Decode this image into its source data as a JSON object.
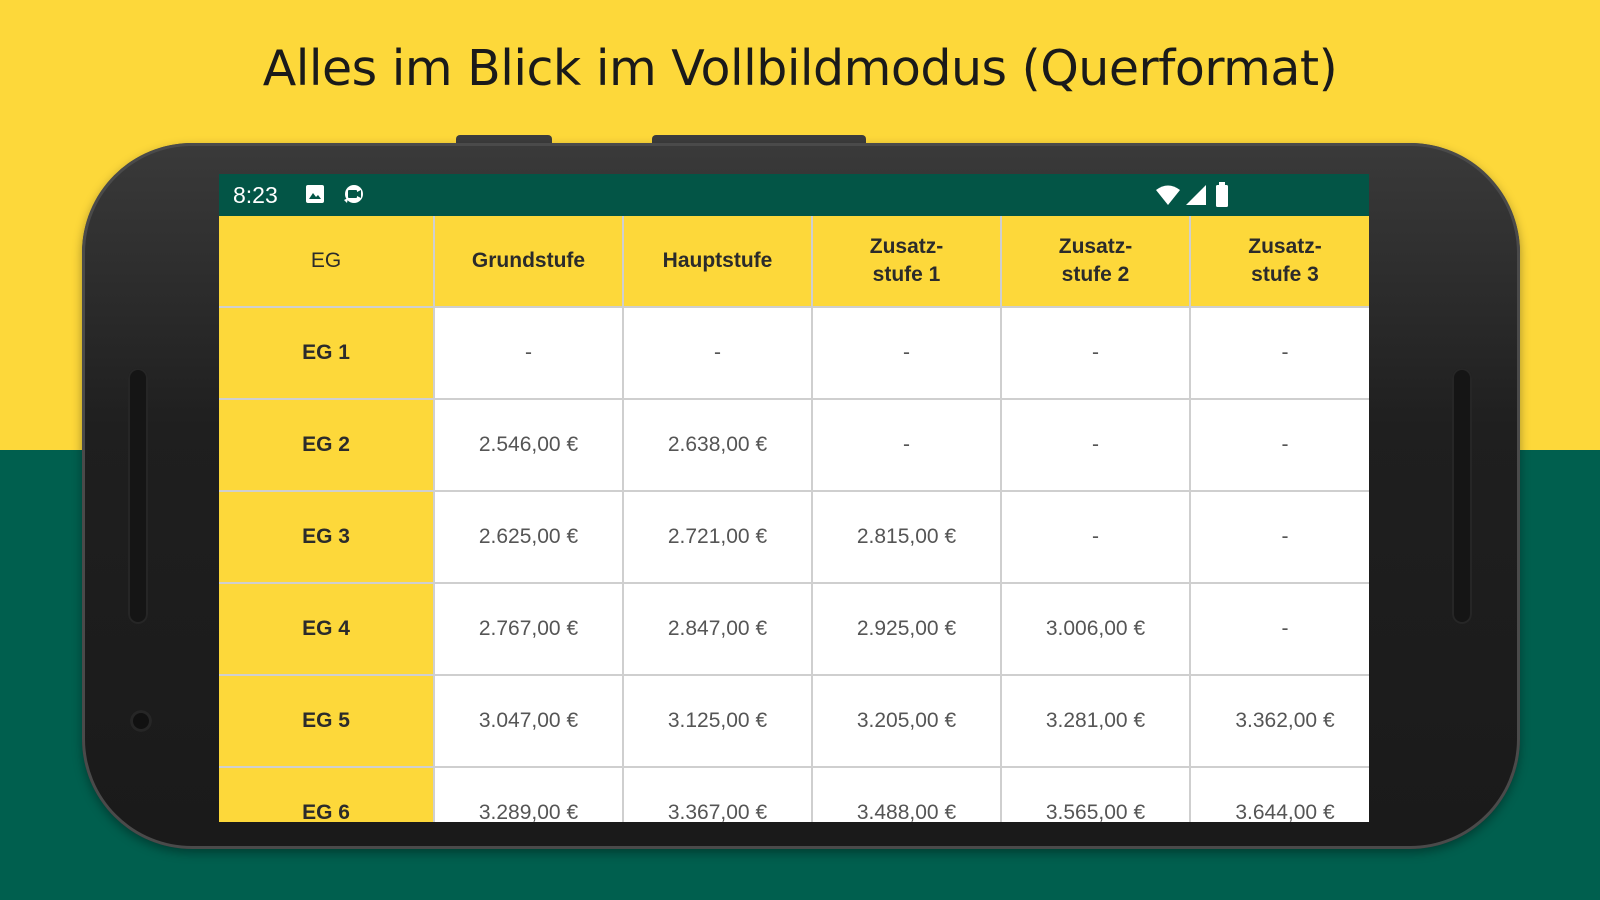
{
  "headline": "Alles im Blick im Vollbildmodus (Querformat)",
  "colors": {
    "yellow": "#FDD83A",
    "green": "#005F4E",
    "statusbar": "#035546"
  },
  "statusbar": {
    "time": "8:23",
    "left_icons": [
      "photo-icon",
      "camera-icon"
    ],
    "right_icons": [
      "wifi-icon",
      "signal-icon",
      "battery-icon"
    ]
  },
  "table": {
    "corner": "EG",
    "columns": [
      "Grundstufe",
      "Hauptstufe",
      "Zusatz-\nstufe 1",
      "Zusatz-\nstufe 2",
      "Zusatz-\nstufe 3"
    ],
    "rows": [
      {
        "label": "EG 1",
        "cells": [
          "-",
          "-",
          "-",
          "-",
          "-"
        ]
      },
      {
        "label": "EG 2",
        "cells": [
          "2.546,00 €",
          "2.638,00 €",
          "-",
          "-",
          "-"
        ]
      },
      {
        "label": "EG 3",
        "cells": [
          "2.625,00 €",
          "2.721,00 €",
          "2.815,00 €",
          "-",
          "-"
        ]
      },
      {
        "label": "EG 4",
        "cells": [
          "2.767,00 €",
          "2.847,00 €",
          "2.925,00 €",
          "3.006,00 €",
          "-"
        ]
      },
      {
        "label": "EG 5",
        "cells": [
          "3.047,00 €",
          "3.125,00 €",
          "3.205,00 €",
          "3.281,00 €",
          "3.362,00 €"
        ]
      },
      {
        "label": "EG 6",
        "cells": [
          "3.289,00 €",
          "3.367,00 €",
          "3.488,00 €",
          "3.565,00 €",
          "3.644,00 €"
        ]
      }
    ]
  }
}
